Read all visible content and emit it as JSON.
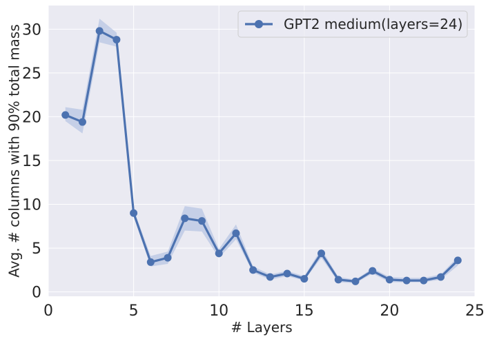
{
  "chart_data": {
    "type": "line",
    "title": "",
    "xlabel": "# Layers",
    "ylabel": "Avg. # columns with 90% total mass",
    "xlim": [
      0,
      25
    ],
    "ylim": [
      -0.5,
      32.7
    ],
    "xticks": [
      0,
      5,
      10,
      15,
      20,
      25
    ],
    "yticks": [
      0,
      5,
      10,
      15,
      20,
      25,
      30
    ],
    "xtick_labels": [
      "0",
      "5",
      "10",
      "15",
      "20",
      "25"
    ],
    "ytick_labels": [
      "0",
      "5",
      "10",
      "15",
      "20",
      "25",
      "30"
    ],
    "grid": true,
    "legend_position": "top-right",
    "x": [
      1,
      2,
      3,
      4,
      5,
      6,
      7,
      8,
      9,
      10,
      11,
      12,
      13,
      14,
      15,
      16,
      17,
      18,
      19,
      20,
      21,
      22,
      23,
      24
    ],
    "series": [
      {
        "name": "GPT2 medium(layers=24)",
        "color": "#4c72b0",
        "band_color": "#b8c6e3",
        "marker": "circle",
        "values": [
          20.2,
          19.4,
          29.8,
          28.8,
          9.0,
          3.4,
          3.9,
          8.4,
          8.1,
          4.4,
          6.7,
          2.5,
          1.7,
          2.1,
          1.5,
          4.4,
          1.4,
          1.2,
          2.4,
          1.4,
          1.3,
          1.3,
          1.7,
          3.6
        ],
        "lower": [
          19.5,
          18.1,
          28.5,
          28.0,
          8.6,
          2.9,
          3.2,
          7.0,
          6.9,
          3.9,
          6.0,
          2.2,
          1.4,
          1.8,
          1.3,
          3.9,
          1.1,
          1.0,
          2.1,
          1.1,
          1.1,
          1.1,
          1.4,
          3.0
        ],
        "upper": [
          21.1,
          20.8,
          31.2,
          29.6,
          9.4,
          4.1,
          4.6,
          9.8,
          9.5,
          4.9,
          7.7,
          2.9,
          2.0,
          2.4,
          1.8,
          4.9,
          1.7,
          1.4,
          2.7,
          1.7,
          1.6,
          1.6,
          2.0,
          4.0
        ]
      }
    ]
  }
}
